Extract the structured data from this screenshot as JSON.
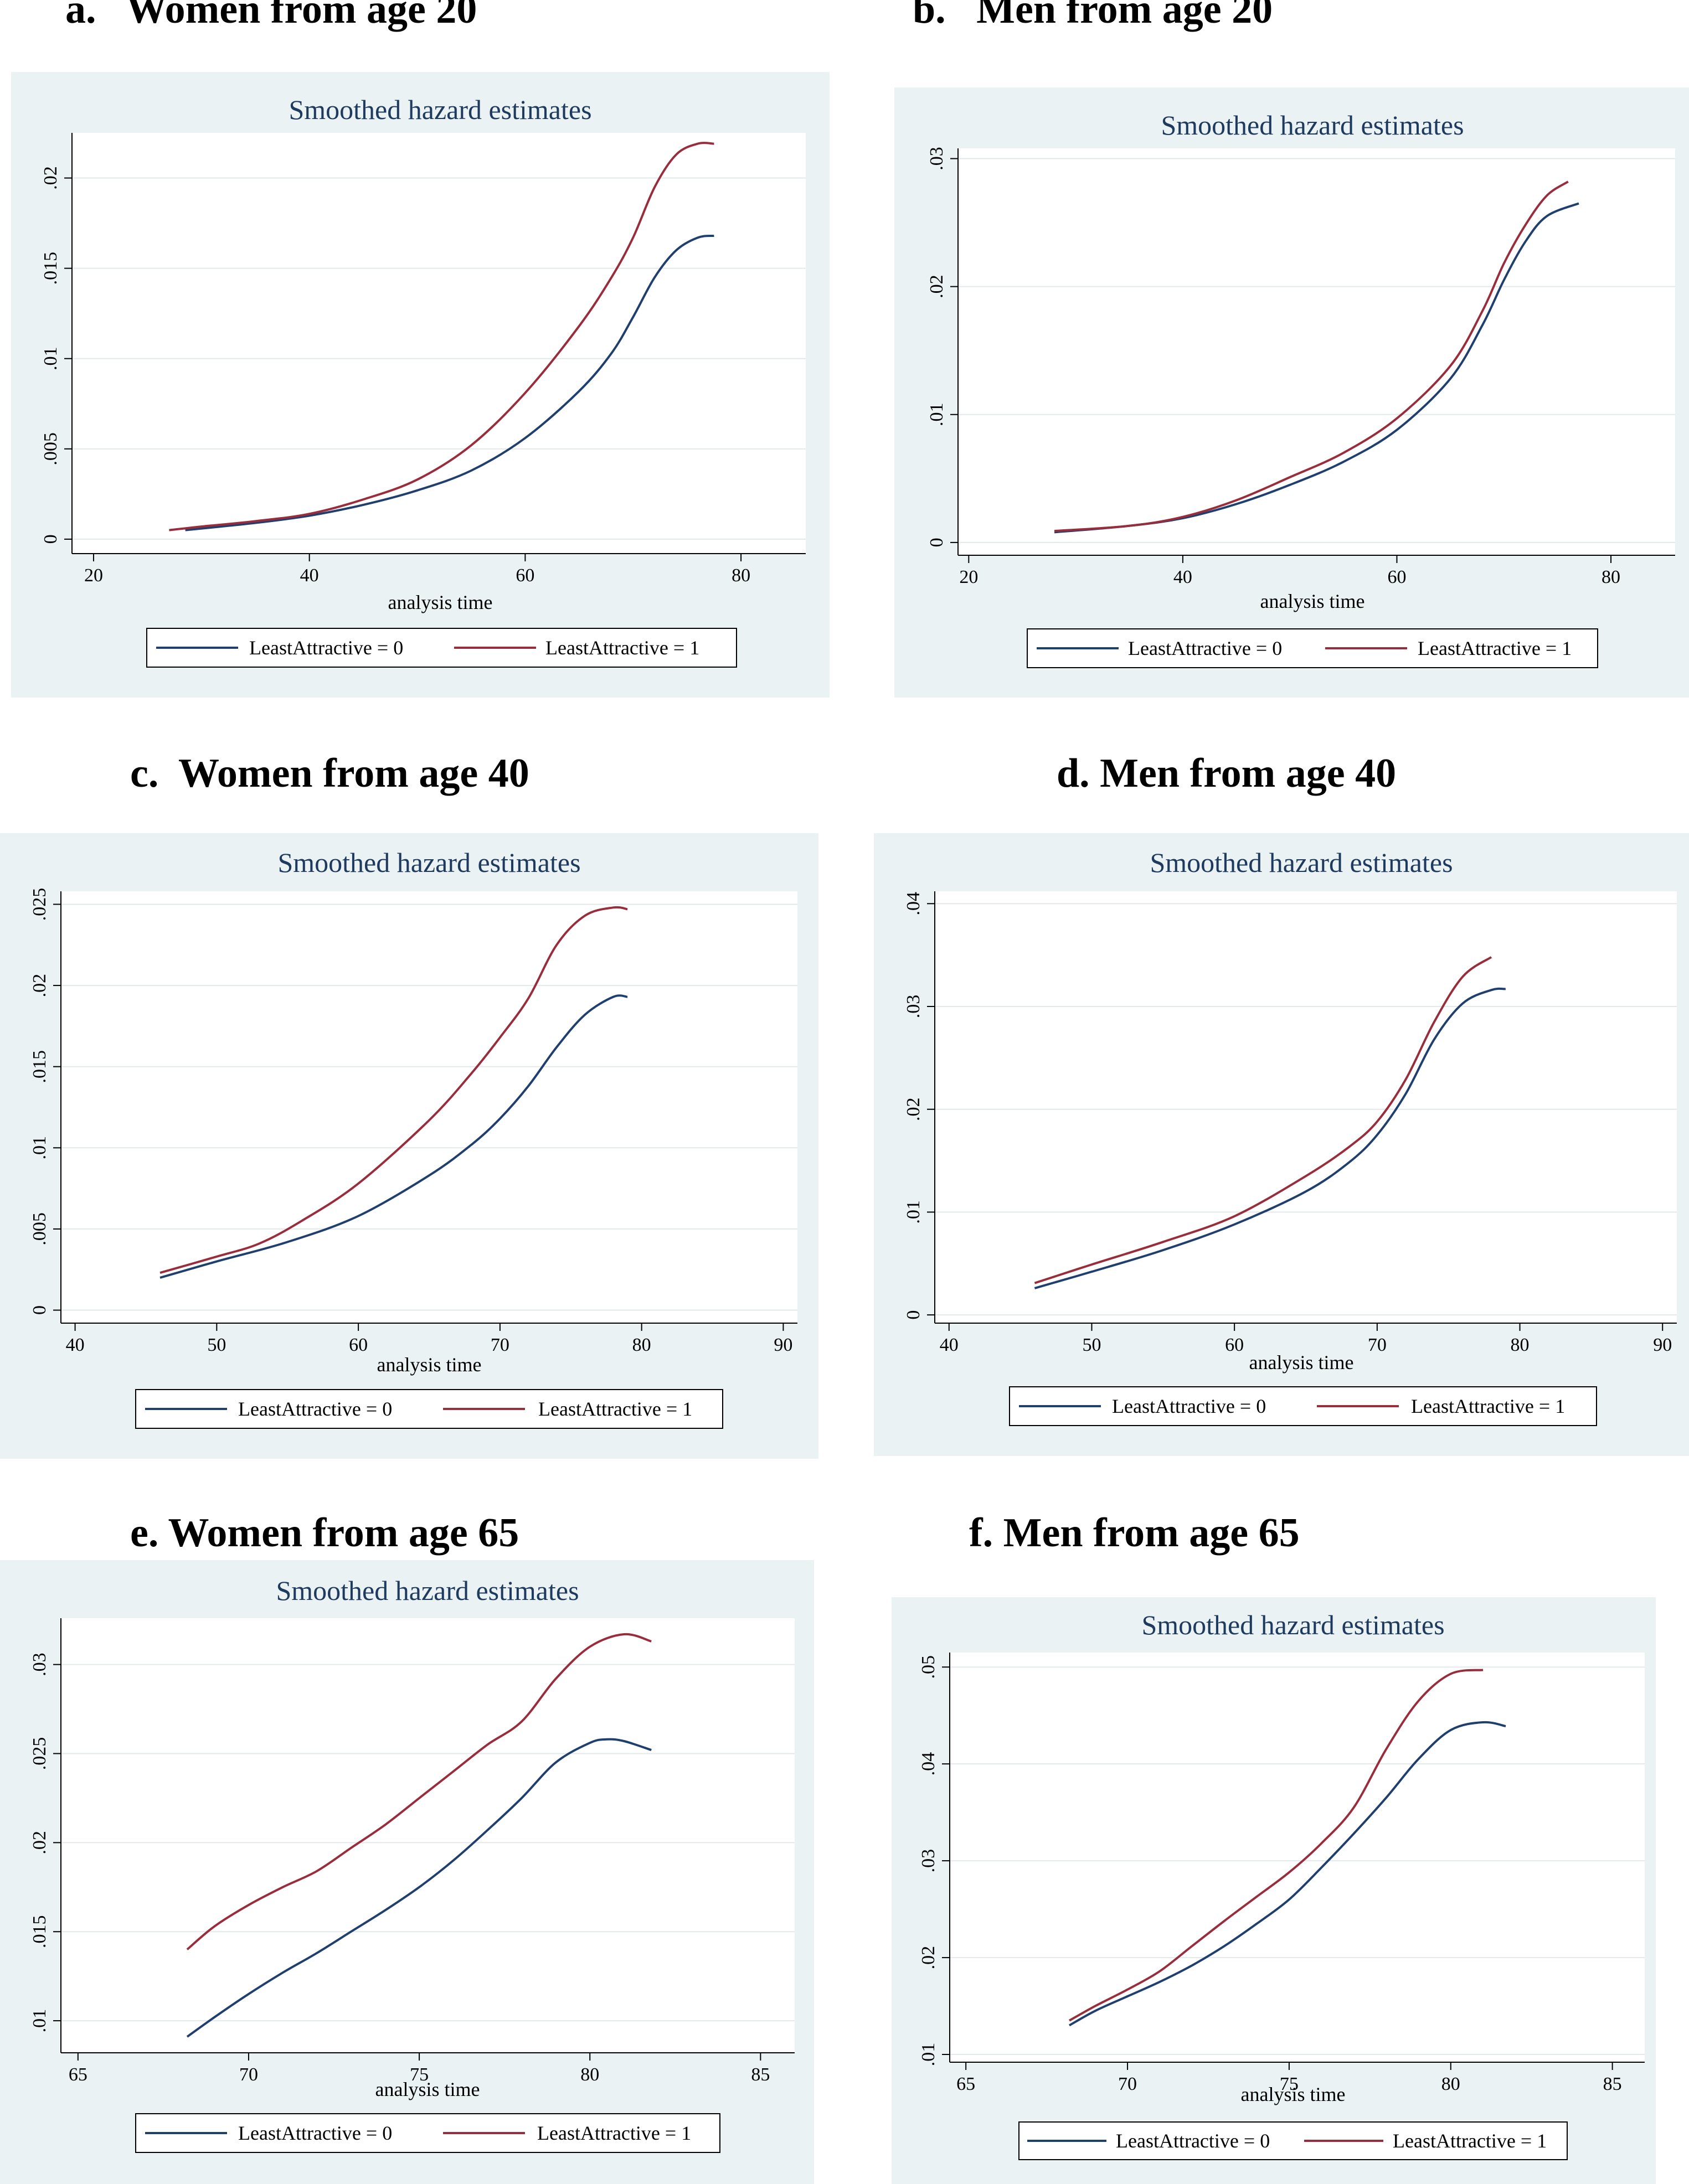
{
  "colors": {
    "series0": "#1f3f6e",
    "series1": "#992d3b",
    "panel_bg": "#eaf2f3",
    "plot_bg": "#ffffff",
    "grid": "#e3e8ea"
  },
  "chart_data": [
    {
      "heading": "a.   Women from age 20",
      "type": "line",
      "title": "Smoothed hazard estimates",
      "xlabel": "analysis time",
      "ylabel": "",
      "xlim": [
        18,
        86
      ],
      "ylim": [
        -0.0008,
        0.0225
      ],
      "xticks": [
        20,
        40,
        60,
        80
      ],
      "yticks": [
        0,
        0.005,
        0.01,
        0.015,
        0.02
      ],
      "ytick_labels": [
        "0",
        ".005",
        ".01",
        ".015",
        ".02"
      ],
      "grid": true,
      "legend": "bottom",
      "series": [
        {
          "name": "LeastAttractive = 0",
          "x": [
            28.5,
            35,
            40,
            45,
            50,
            55,
            60,
            65,
            68,
            70,
            72,
            74,
            76,
            77.5
          ],
          "y": [
            0.0005,
            0.0009,
            0.0013,
            0.0019,
            0.0027,
            0.0038,
            0.0056,
            0.0082,
            0.0103,
            0.0123,
            0.0145,
            0.016,
            0.0167,
            0.0168
          ]
        },
        {
          "name": "LeastAttractive = 1",
          "x": [
            27,
            30,
            35,
            40,
            45,
            50,
            55,
            60,
            65,
            68,
            70,
            72,
            74,
            76,
            77.5
          ],
          "y": [
            0.0005,
            0.0007,
            0.001,
            0.0014,
            0.0022,
            0.0033,
            0.0052,
            0.0081,
            0.0118,
            0.0145,
            0.0167,
            0.0195,
            0.0213,
            0.0219,
            0.0219
          ]
        }
      ]
    },
    {
      "heading": "b.   Men from age 20",
      "type": "line",
      "title": "Smoothed hazard estimates",
      "xlabel": "analysis time",
      "ylabel": "",
      "xlim": [
        19,
        86
      ],
      "ylim": [
        -0.001,
        0.0308
      ],
      "xticks": [
        20,
        40,
        60,
        80
      ],
      "yticks": [
        0,
        0.01,
        0.02,
        0.03
      ],
      "ytick_labels": [
        "0",
        ".01",
        ".02",
        ".03"
      ],
      "grid": true,
      "legend": "bottom",
      "series": [
        {
          "name": "LeastAttractive = 0",
          "x": [
            28,
            35,
            40,
            45,
            50,
            55,
            60,
            65,
            68,
            70,
            72,
            74,
            77
          ],
          "y": [
            0.0008,
            0.0013,
            0.0019,
            0.003,
            0.0045,
            0.0063,
            0.0088,
            0.0128,
            0.017,
            0.0205,
            0.0235,
            0.0255,
            0.0265
          ]
        },
        {
          "name": "LeastAttractive = 1",
          "x": [
            28,
            35,
            40,
            45,
            50,
            55,
            60,
            65,
            68,
            70,
            72,
            74,
            76
          ],
          "y": [
            0.0009,
            0.0013,
            0.002,
            0.0033,
            0.0051,
            0.007,
            0.0097,
            0.0138,
            0.0181,
            0.0218,
            0.0248,
            0.0271,
            0.0282
          ]
        }
      ]
    },
    {
      "heading": "c.  Women from age 40",
      "type": "line",
      "title": "Smoothed hazard estimates",
      "xlabel": "analysis time",
      "ylabel": "",
      "xlim": [
        39,
        91
      ],
      "ylim": [
        -0.0008,
        0.0258
      ],
      "xticks": [
        40,
        50,
        60,
        70,
        80,
        90
      ],
      "yticks": [
        0,
        0.005,
        0.01,
        0.015,
        0.02,
        0.025
      ],
      "ytick_labels": [
        "0",
        ".005",
        ".01",
        ".015",
        ".02",
        ".025"
      ],
      "grid": true,
      "legend": "bottom",
      "series": [
        {
          "name": "LeastAttractive = 0",
          "x": [
            46,
            50,
            55,
            60,
            65,
            68,
            70,
            72,
            74,
            76,
            78,
            79
          ],
          "y": [
            0.002,
            0.003,
            0.0042,
            0.0058,
            0.0083,
            0.0102,
            0.0118,
            0.0138,
            0.0162,
            0.0182,
            0.0193,
            0.0193
          ]
        },
        {
          "name": "LeastAttractive = 1",
          "x": [
            46,
            50,
            53,
            56,
            60,
            65,
            68,
            70,
            72,
            74,
            76,
            78,
            79
          ],
          "y": [
            0.0023,
            0.0033,
            0.0041,
            0.0055,
            0.0078,
            0.0117,
            0.0146,
            0.0168,
            0.0192,
            0.0225,
            0.0243,
            0.0248,
            0.0247
          ]
        }
      ]
    },
    {
      "heading": "d. Men from age 40",
      "type": "line",
      "title": "Smoothed hazard estimates",
      "xlabel": "analysis time",
      "ylabel": "",
      "xlim": [
        39,
        91
      ],
      "ylim": [
        -0.0008,
        0.0412
      ],
      "xticks": [
        40,
        50,
        60,
        70,
        80,
        90
      ],
      "yticks": [
        0,
        0.01,
        0.02,
        0.03,
        0.04
      ],
      "ytick_labels": [
        "0",
        ".01",
        ".02",
        ".03",
        ".04"
      ],
      "grid": true,
      "legend": "bottom",
      "series": [
        {
          "name": "LeastAttractive = 0",
          "x": [
            46,
            50,
            55,
            60,
            65,
            68,
            70,
            72,
            74,
            76,
            78,
            79
          ],
          "y": [
            0.0026,
            0.0042,
            0.0063,
            0.0088,
            0.012,
            0.0148,
            0.0175,
            0.0215,
            0.0268,
            0.0303,
            0.0316,
            0.0317
          ]
        },
        {
          "name": "LeastAttractive = 1",
          "x": [
            46,
            50,
            55,
            60,
            65,
            68,
            70,
            72,
            74,
            76,
            78
          ],
          "y": [
            0.0031,
            0.0049,
            0.0071,
            0.0096,
            0.0135,
            0.0163,
            0.0188,
            0.0229,
            0.0285,
            0.0329,
            0.0348
          ]
        }
      ]
    },
    {
      "heading": "e. Women from age 65",
      "type": "line",
      "title": "Smoothed hazard estimates",
      "xlabel": "analysis time",
      "ylabel": "",
      "xlim": [
        64.5,
        86
      ],
      "ylim": [
        0.0082,
        0.0326
      ],
      "xticks": [
        65,
        70,
        75,
        80,
        85
      ],
      "yticks": [
        0.01,
        0.015,
        0.02,
        0.025,
        0.03
      ],
      "ytick_labels": [
        ".01",
        ".015",
        ".02",
        ".025",
        ".03"
      ],
      "grid": true,
      "legend": "bottom",
      "series": [
        {
          "name": "LeastAttractive = 0",
          "x": [
            68.2,
            69,
            70,
            71,
            72,
            73,
            74,
            75,
            76,
            77,
            78,
            79,
            80,
            80.5,
            81,
            81.8
          ],
          "y": [
            0.0091,
            0.0102,
            0.0115,
            0.0127,
            0.0138,
            0.015,
            0.0162,
            0.0175,
            0.019,
            0.0207,
            0.0225,
            0.0245,
            0.0256,
            0.0258,
            0.0257,
            0.0252
          ]
        },
        {
          "name": "LeastAttractive = 1",
          "x": [
            68.2,
            69,
            70,
            71,
            72,
            73,
            74,
            75,
            76,
            77,
            78,
            79,
            80,
            81,
            81.8
          ],
          "y": [
            0.014,
            0.0153,
            0.0165,
            0.0175,
            0.0184,
            0.0197,
            0.021,
            0.0225,
            0.024,
            0.0255,
            0.0268,
            0.0292,
            0.031,
            0.0317,
            0.0313
          ]
        }
      ]
    },
    {
      "heading": "f. Men from age 65",
      "type": "line",
      "title": "Smoothed hazard estimates",
      "xlabel": "analysis time",
      "ylabel": "",
      "xlim": [
        64.5,
        86
      ],
      "ylim": [
        0.0092,
        0.0515
      ],
      "xticks": [
        65,
        70,
        75,
        80,
        85
      ],
      "yticks": [
        0.01,
        0.02,
        0.03,
        0.04,
        0.05
      ],
      "ytick_labels": [
        ".01",
        ".02",
        ".03",
        ".04",
        ".05"
      ],
      "grid": true,
      "legend": "bottom",
      "series": [
        {
          "name": "LeastAttractive = 0",
          "x": [
            68.2,
            69,
            70,
            71,
            72,
            73,
            74,
            75,
            76,
            77,
            78,
            79,
            80,
            81,
            81.7
          ],
          "y": [
            0.013,
            0.0145,
            0.016,
            0.0175,
            0.0192,
            0.0212,
            0.0235,
            0.026,
            0.0293,
            0.0328,
            0.0365,
            0.0405,
            0.0435,
            0.0443,
            0.0439
          ]
        },
        {
          "name": "LeastAttractive = 1",
          "x": [
            68.2,
            69,
            70,
            71,
            72,
            73,
            74,
            75,
            76,
            77,
            78,
            79,
            80,
            81
          ],
          "y": [
            0.0135,
            0.015,
            0.0167,
            0.0186,
            0.0212,
            0.0238,
            0.0263,
            0.0288,
            0.0318,
            0.0355,
            0.0415,
            0.0465,
            0.0493,
            0.0497
          ]
        }
      ]
    }
  ]
}
